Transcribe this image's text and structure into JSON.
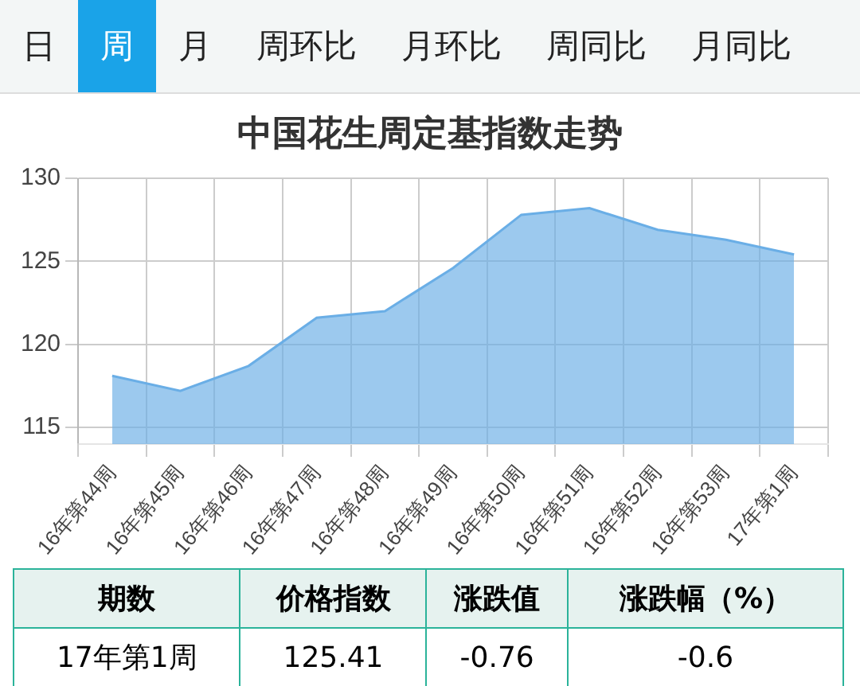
{
  "chart_data": {
    "type": "area",
    "title": "中国花生周定基指数走势",
    "categories": [
      "16年第44周",
      "16年第45周",
      "16年第46周",
      "16年第47周",
      "16年第48周",
      "16年第49周",
      "16年第50周",
      "16年第51周",
      "16年第52周",
      "16年第53周",
      "17年第1周"
    ],
    "values": [
      118.1,
      117.2,
      118.7,
      121.6,
      122.0,
      124.6,
      127.8,
      128.2,
      126.9,
      126.3,
      125.41
    ],
    "color": "#6aaee6",
    "ylim": [
      114,
      130
    ],
    "yticks": [
      115,
      120,
      125,
      130
    ],
    "grid": true,
    "annotations": [
      "日",
      "周",
      "月",
      "周环比",
      "月环比",
      "周同比",
      "月同比",
      "期数",
      "价格指数",
      "涨跌值",
      "涨跌幅（%）",
      "17年第1周",
      "125.41",
      "-0.76",
      "-0.6"
    ]
  }
}
